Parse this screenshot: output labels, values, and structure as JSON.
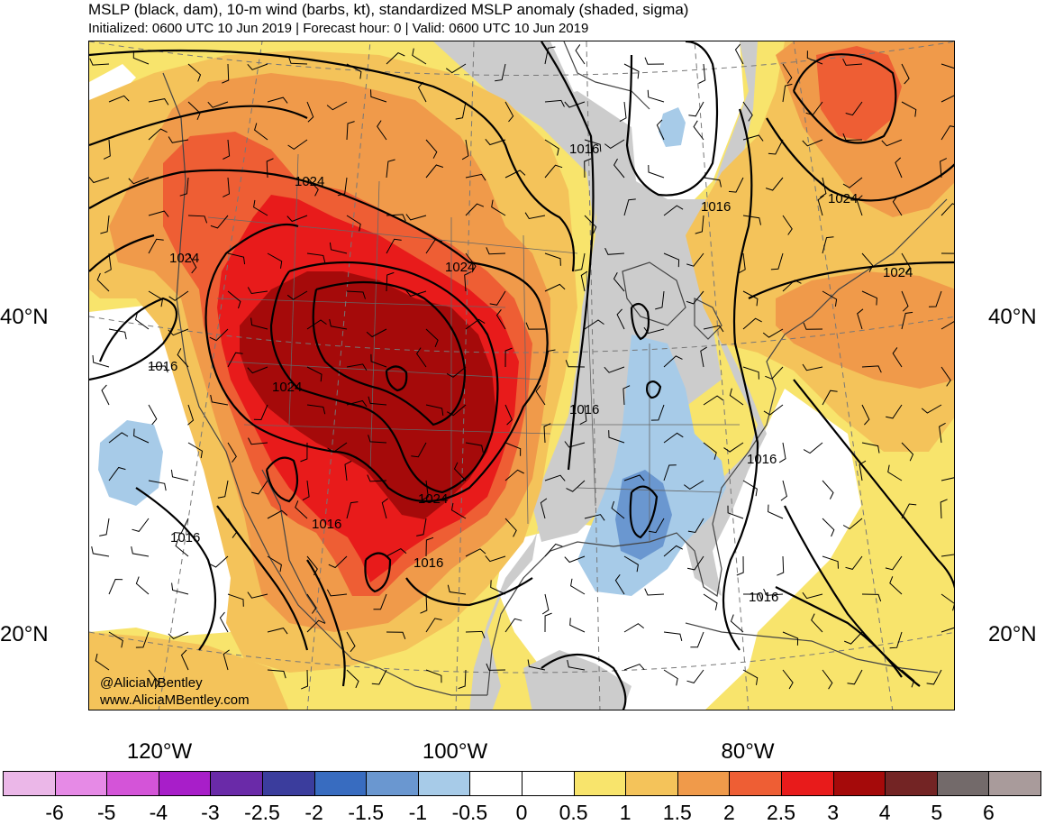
{
  "title": "MSLP (black, dam), 10-m wind (barbs, kt), standardized MSLP anomaly (shaded, sigma)",
  "subtitle": "Initialized: 0600 UTC 10 Jun 2019 | Forecast hour: 0 | Valid: 0600 UTC 10 Jun 2019",
  "credits": {
    "handle": "@AliciaMBentley",
    "website": "www.AliciaMBentley.com"
  },
  "lat_labels": [
    "40°N",
    "20°N"
  ],
  "lon_labels": [
    "120°W",
    "100°W",
    "80°W"
  ],
  "isobar_labels": [
    "1024",
    "1024",
    "1024",
    "1024",
    "1024",
    "1024",
    "1024",
    "1016",
    "1016",
    "1016",
    "1016",
    "1016",
    "1016",
    "1016",
    "1016",
    "1016"
  ],
  "colorbar": {
    "colors": [
      "#ebb7e8",
      "#e68ae6",
      "#d454d8",
      "#a81ec9",
      "#6a2aa8",
      "#3b3d9d",
      "#386cc0",
      "#6a97d0",
      "#a7cbe8",
      "#ffffff",
      "#ffffff",
      "#f8e46c",
      "#f4c35a",
      "#f09a4a",
      "#ee5e34",
      "#e81b1b",
      "#a50a0a",
      "#732424",
      "#736a6a",
      "#a99b9b"
    ],
    "ticks": [
      "-6",
      "-5",
      "-4",
      "-3",
      "-2.5",
      "-2",
      "-1.5",
      "-1",
      "-0.5",
      "0",
      "0.5",
      "1",
      "1.5",
      "2",
      "2.5",
      "3",
      "4",
      "5",
      "6"
    ]
  },
  "palette": {
    "yellow": "#f8e46c",
    "light_orange": "#f4c35a",
    "orange": "#f09a4a",
    "dark_orange": "#ee5e34",
    "red": "#e81b1b",
    "dark_red": "#a50a0a",
    "light_blue": "#a7cbe8",
    "blue": "#6a97d0",
    "dark_blue": "#386cc0",
    "gray": "#cccccc",
    "white": "#ffffff"
  }
}
